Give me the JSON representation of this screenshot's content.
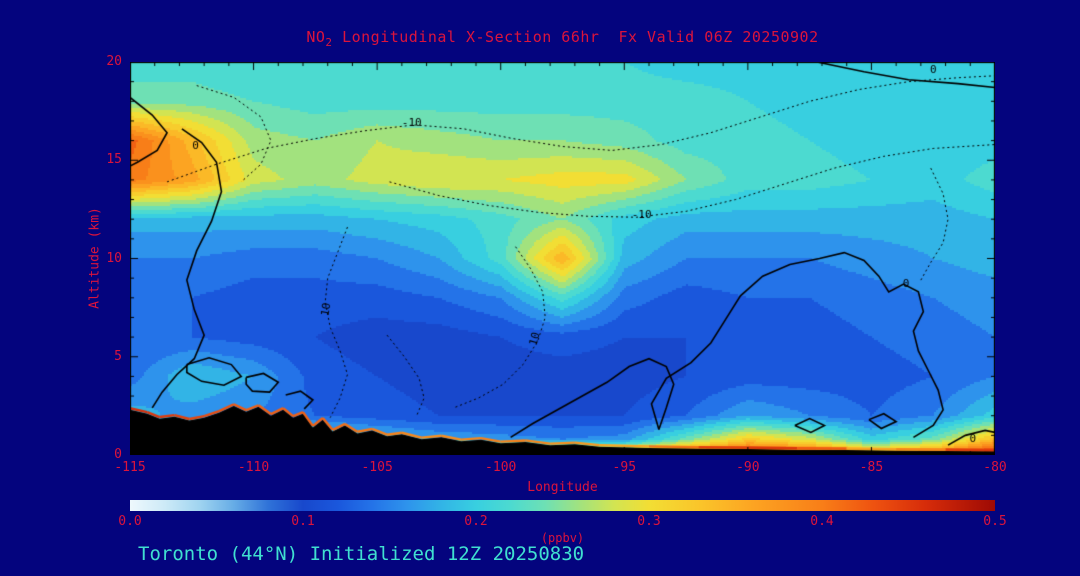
{
  "colors": {
    "background": "#04047e",
    "title_text": "#DC143C",
    "axis_text": "#DC143C",
    "footer_text": "#40E0D0",
    "contour_lines": "#000000",
    "terrain": "#000000"
  },
  "title": {
    "prefix": "NO",
    "subscript": "2",
    "rest": " Longitudinal X-Section 66hr  Fx Valid 06Z 20250902"
  },
  "footer": {
    "text": "Toronto (44°N) Initialized 12Z 20250830"
  },
  "chart_data": {
    "type": "heatmap",
    "title": "NO2 Longitudinal X-Section 66hr  Fx Valid 06Z 20250902",
    "x_axis": {
      "label": "Longitude",
      "min": -115,
      "max": -80,
      "major_ticks": [
        -115,
        -110,
        -105,
        -100,
        -95,
        -90,
        -85,
        -80
      ],
      "tick_labels": [
        "-115",
        "-110",
        "-105",
        "-100",
        "-95",
        "-90",
        "-85",
        "-80"
      ],
      "minor_tick_step": 1
    },
    "y_axis": {
      "label": "Altitude (km)",
      "min": 0,
      "max": 20,
      "major_ticks": [
        0,
        5,
        10,
        15,
        20
      ],
      "tick_labels": [
        "0",
        "5",
        "10",
        "15",
        "20"
      ],
      "minor_tick_step": 1
    },
    "colorbar": {
      "label": "(ppbv)",
      "min": 0.0,
      "max": 0.5,
      "tick_values": [
        0.0,
        0.1,
        0.2,
        0.3,
        0.4,
        0.5
      ],
      "tick_labels": [
        "0.0",
        "0.1",
        "0.2",
        "0.3",
        "0.4",
        "0.5"
      ],
      "stops": [
        [
          0.0,
          "#eef8fd"
        ],
        [
          0.02,
          "#cdeaf7"
        ],
        [
          0.04,
          "#a0d4f0"
        ],
        [
          0.06,
          "#66ace6"
        ],
        [
          0.08,
          "#2f72d8"
        ],
        [
          0.1,
          "#1848cc"
        ],
        [
          0.12,
          "#1a57dc"
        ],
        [
          0.14,
          "#2473e8"
        ],
        [
          0.16,
          "#2e93ec"
        ],
        [
          0.18,
          "#32b4e6"
        ],
        [
          0.2,
          "#38cfe0"
        ],
        [
          0.22,
          "#4cdad0"
        ],
        [
          0.24,
          "#6ee0b4"
        ],
        [
          0.26,
          "#a2e27e"
        ],
        [
          0.28,
          "#d2e452"
        ],
        [
          0.3,
          "#f2de34"
        ],
        [
          0.33,
          "#fac42a"
        ],
        [
          0.36,
          "#fca422"
        ],
        [
          0.4,
          "#f87e18"
        ],
        [
          0.43,
          "#ee5210"
        ],
        [
          0.46,
          "#d62c0a"
        ],
        [
          0.5,
          "#9e0a04"
        ]
      ]
    },
    "grid": {
      "lon": [
        -115,
        -112.5,
        -110,
        -107.5,
        -105,
        -102.5,
        -100,
        -97.5,
        -95,
        -92.5,
        -90,
        -87.5,
        -85,
        -82.5,
        -80
      ],
      "km": [
        0,
        0.8,
        2,
        4,
        6,
        8,
        10,
        12,
        14,
        16,
        18,
        20
      ],
      "values_ppbv": [
        [
          0.46,
          0.44,
          0.42,
          0.42,
          0.4,
          0.38,
          0.4,
          0.38,
          0.36,
          0.42,
          0.46,
          0.44,
          0.36,
          0.4,
          0.48
        ],
        [
          0.3,
          0.26,
          0.24,
          0.22,
          0.19,
          0.17,
          0.16,
          0.15,
          0.16,
          0.24,
          0.32,
          0.28,
          0.2,
          0.24,
          0.34
        ],
        [
          0.18,
          0.16,
          0.15,
          0.13,
          0.12,
          0.11,
          0.11,
          0.11,
          0.11,
          0.13,
          0.17,
          0.15,
          0.13,
          0.15,
          0.2
        ],
        [
          0.14,
          0.19,
          0.17,
          0.12,
          0.11,
          0.1,
          0.1,
          0.1,
          0.1,
          0.11,
          0.12,
          0.12,
          0.12,
          0.13,
          0.15
        ],
        [
          0.13,
          0.13,
          0.12,
          0.11,
          0.1,
          0.1,
          0.11,
          0.12,
          0.11,
          0.11,
          0.12,
          0.12,
          0.13,
          0.14,
          0.15
        ],
        [
          0.13,
          0.13,
          0.12,
          0.12,
          0.12,
          0.13,
          0.15,
          0.22,
          0.14,
          0.12,
          0.13,
          0.13,
          0.14,
          0.15,
          0.16
        ],
        [
          0.15,
          0.15,
          0.14,
          0.14,
          0.15,
          0.17,
          0.22,
          0.35,
          0.18,
          0.15,
          0.15,
          0.15,
          0.16,
          0.17,
          0.18
        ],
        [
          0.18,
          0.18,
          0.18,
          0.18,
          0.19,
          0.2,
          0.22,
          0.25,
          0.2,
          0.18,
          0.18,
          0.18,
          0.18,
          0.18,
          0.19
        ],
        [
          0.4,
          0.36,
          0.28,
          0.26,
          0.28,
          0.29,
          0.29,
          0.3,
          0.3,
          0.25,
          0.22,
          0.22,
          0.21,
          0.2,
          0.22
        ],
        [
          0.42,
          0.34,
          0.26,
          0.25,
          0.27,
          0.26,
          0.25,
          0.25,
          0.24,
          0.22,
          0.22,
          0.21,
          0.2,
          0.2,
          0.2
        ],
        [
          0.24,
          0.24,
          0.23,
          0.22,
          0.22,
          0.22,
          0.22,
          0.22,
          0.22,
          0.22,
          0.21,
          0.2,
          0.2,
          0.2,
          0.2
        ],
        [
          0.22,
          0.22,
          0.21,
          0.21,
          0.21,
          0.21,
          0.21,
          0.21,
          0.21,
          0.2,
          0.2,
          0.2,
          0.19,
          0.19,
          0.19
        ]
      ]
    },
    "terrain_km": [
      [
        -115,
        2.3
      ],
      [
        -114.3,
        2.1
      ],
      [
        -113.8,
        1.85
      ],
      [
        -113.2,
        1.95
      ],
      [
        -112.6,
        1.75
      ],
      [
        -112,
        1.9
      ],
      [
        -111.4,
        2.15
      ],
      [
        -110.8,
        2.5
      ],
      [
        -110.3,
        2.2
      ],
      [
        -109.8,
        2.45
      ],
      [
        -109.3,
        2.0
      ],
      [
        -108.8,
        2.3
      ],
      [
        -108.4,
        1.9
      ],
      [
        -108,
        2.1
      ],
      [
        -107.6,
        1.4
      ],
      [
        -107.2,
        1.8
      ],
      [
        -106.8,
        1.2
      ],
      [
        -106.3,
        1.5
      ],
      [
        -105.8,
        1.1
      ],
      [
        -105.2,
        1.25
      ],
      [
        -104.6,
        0.95
      ],
      [
        -104,
        1.05
      ],
      [
        -103.2,
        0.8
      ],
      [
        -102.4,
        0.9
      ],
      [
        -101.6,
        0.7
      ],
      [
        -100.8,
        0.78
      ],
      [
        -100,
        0.6
      ],
      [
        -99,
        0.66
      ],
      [
        -98,
        0.5
      ],
      [
        -97,
        0.55
      ],
      [
        -96,
        0.42
      ],
      [
        -94,
        0.36
      ],
      [
        -92,
        0.32
      ],
      [
        -90,
        0.3
      ],
      [
        -88,
        0.26
      ],
      [
        -86,
        0.25
      ],
      [
        -84,
        0.22
      ],
      [
        -82,
        0.2
      ],
      [
        -80,
        0.18
      ]
    ],
    "contours": [
      {
        "dash": false,
        "pts": [
          [
            -87.2,
            20
          ],
          [
            -85.3,
            19.5
          ],
          [
            -83.5,
            19.1
          ],
          [
            -81.5,
            18.9
          ],
          [
            -80,
            18.7
          ]
        ]
      },
      {
        "dash": false,
        "pts": [
          [
            -115,
            18.2
          ],
          [
            -114.1,
            17.3
          ],
          [
            -113.5,
            16.4
          ],
          [
            -113.9,
            15.5
          ],
          [
            -114.7,
            14.9
          ],
          [
            -115,
            14.7
          ]
        ]
      },
      {
        "dash": false,
        "pts": [
          [
            -112.9,
            16.6
          ],
          [
            -112.1,
            15.9
          ],
          [
            -111.5,
            14.9
          ],
          [
            -111.3,
            13.4
          ],
          [
            -111.7,
            11.9
          ],
          [
            -112.3,
            10.4
          ],
          [
            -112.7,
            8.9
          ],
          [
            -112.4,
            7.4
          ],
          [
            -112,
            6.1
          ],
          [
            -112.4,
            4.9
          ],
          [
            -113.1,
            4.1
          ],
          [
            -113.7,
            3.2
          ],
          [
            -114.1,
            2.4
          ]
        ]
      },
      {
        "dash": false,
        "pts": [
          [
            -112.7,
            4.6
          ],
          [
            -111.8,
            4.95
          ],
          [
            -110.9,
            4.6
          ],
          [
            -110.5,
            4.0
          ],
          [
            -111.2,
            3.55
          ],
          [
            -112.1,
            3.75
          ],
          [
            -112.7,
            4.2
          ],
          [
            -112.7,
            4.6
          ]
        ]
      },
      {
        "dash": false,
        "pts": [
          [
            -110.3,
            3.95
          ],
          [
            -109.6,
            4.15
          ],
          [
            -109.0,
            3.7
          ],
          [
            -109.35,
            3.2
          ],
          [
            -110.05,
            3.25
          ],
          [
            -110.3,
            3.6
          ],
          [
            -110.3,
            3.95
          ]
        ]
      },
      {
        "dash": false,
        "pts": [
          [
            -108.7,
            3.05
          ],
          [
            -108.1,
            3.25
          ],
          [
            -107.6,
            2.8
          ],
          [
            -107.95,
            2.35
          ]
        ]
      },
      {
        "dash": false,
        "pts": [
          [
            -99.6,
            0.9
          ],
          [
            -98.7,
            1.6
          ],
          [
            -97.7,
            2.3
          ],
          [
            -96.7,
            3.0
          ],
          [
            -95.7,
            3.7
          ],
          [
            -94.8,
            4.5
          ],
          [
            -94.0,
            4.9
          ],
          [
            -93.3,
            4.5
          ],
          [
            -93.0,
            3.6
          ],
          [
            -93.3,
            2.4
          ],
          [
            -93.6,
            1.3
          ]
        ]
      },
      {
        "dash": false,
        "pts": [
          [
            -93.6,
            1.3
          ],
          [
            -93.9,
            2.6
          ],
          [
            -93.3,
            3.9
          ],
          [
            -92.3,
            4.7
          ],
          [
            -91.5,
            5.7
          ],
          [
            -90.9,
            6.9
          ],
          [
            -90.3,
            8.1
          ],
          [
            -89.4,
            9.1
          ],
          [
            -88.3,
            9.7
          ],
          [
            -87.1,
            10.0
          ],
          [
            -86.1,
            10.3
          ],
          [
            -85.3,
            9.9
          ],
          [
            -84.7,
            9.1
          ],
          [
            -84.3,
            8.3
          ],
          [
            -83.7,
            8.7
          ],
          [
            -83.1,
            8.3
          ],
          [
            -82.9,
            7.3
          ],
          [
            -83.3,
            6.3
          ],
          [
            -83.1,
            5.3
          ],
          [
            -82.7,
            4.3
          ],
          [
            -82.3,
            3.3
          ],
          [
            -82.1,
            2.3
          ],
          [
            -82.5,
            1.5
          ],
          [
            -83.3,
            0.9
          ]
        ]
      },
      {
        "dash": false,
        "pts": [
          [
            -88.1,
            1.5
          ],
          [
            -87.5,
            1.85
          ],
          [
            -86.9,
            1.5
          ],
          [
            -87.45,
            1.15
          ],
          [
            -88.1,
            1.5
          ]
        ]
      },
      {
        "dash": false,
        "pts": [
          [
            -85.1,
            1.8
          ],
          [
            -84.5,
            2.1
          ],
          [
            -84.0,
            1.7
          ],
          [
            -84.6,
            1.35
          ],
          [
            -85.1,
            1.8
          ]
        ]
      },
      {
        "dash": false,
        "pts": [
          [
            -81.9,
            0.5
          ],
          [
            -81.2,
            1.0
          ],
          [
            -80.4,
            1.25
          ],
          [
            -80,
            1.15
          ]
        ]
      },
      {
        "dash": true,
        "pts": [
          [
            -113.5,
            13.9
          ],
          [
            -111.5,
            14.8
          ],
          [
            -109.5,
            15.6
          ],
          [
            -107.5,
            16.1
          ],
          [
            -105.5,
            16.5
          ],
          [
            -103.5,
            16.8
          ],
          [
            -101.5,
            16.6
          ],
          [
            -99.5,
            16.1
          ],
          [
            -97.5,
            15.7
          ],
          [
            -95.5,
            15.5
          ],
          [
            -93.5,
            15.8
          ],
          [
            -91.5,
            16.4
          ],
          [
            -89.5,
            17.2
          ],
          [
            -87.5,
            18.0
          ],
          [
            -85.5,
            18.6
          ],
          [
            -83.5,
            19.0
          ],
          [
            -81.5,
            19.2
          ],
          [
            -80,
            19.3
          ]
        ]
      },
      {
        "dash": true,
        "pts": [
          [
            -104.5,
            13.9
          ],
          [
            -102.5,
            13.2
          ],
          [
            -100.5,
            12.7
          ],
          [
            -98.5,
            12.35
          ],
          [
            -96.5,
            12.15
          ],
          [
            -94.5,
            12.1
          ],
          [
            -92.5,
            12.4
          ],
          [
            -90.5,
            13.0
          ],
          [
            -88.5,
            13.8
          ],
          [
            -86.5,
            14.6
          ],
          [
            -84.5,
            15.2
          ],
          [
            -82.5,
            15.6
          ],
          [
            -80,
            15.8
          ]
        ]
      },
      {
        "dash": true,
        "pts": [
          [
            -106.2,
            11.6
          ],
          [
            -106.6,
            10.3
          ],
          [
            -107.0,
            9.0
          ],
          [
            -107.1,
            7.8
          ],
          [
            -106.9,
            6.5
          ],
          [
            -106.5,
            5.3
          ],
          [
            -106.2,
            4.1
          ],
          [
            -106.5,
            2.9
          ],
          [
            -106.9,
            1.9
          ]
        ]
      },
      {
        "dash": true,
        "pts": [
          [
            -99.4,
            10.6
          ],
          [
            -98.8,
            9.5
          ],
          [
            -98.3,
            8.3
          ],
          [
            -98.2,
            7.0
          ],
          [
            -98.5,
            5.8
          ],
          [
            -99.1,
            4.6
          ],
          [
            -99.9,
            3.6
          ],
          [
            -100.9,
            2.9
          ],
          [
            -101.9,
            2.4
          ]
        ]
      },
      {
        "dash": true,
        "pts": [
          [
            -112.3,
            18.8
          ],
          [
            -110.8,
            18.2
          ],
          [
            -109.7,
            17.2
          ],
          [
            -109.3,
            16.0
          ],
          [
            -109.7,
            14.8
          ],
          [
            -110.5,
            13.9
          ]
        ]
      },
      {
        "dash": true,
        "pts": [
          [
            -82.6,
            14.6
          ],
          [
            -82.1,
            13.3
          ],
          [
            -81.9,
            12.0
          ],
          [
            -82.1,
            10.8
          ],
          [
            -82.6,
            9.8
          ],
          [
            -83.0,
            8.9
          ]
        ]
      },
      {
        "dash": true,
        "pts": [
          [
            -104.6,
            6.1
          ],
          [
            -103.9,
            5.0
          ],
          [
            -103.3,
            3.9
          ],
          [
            -103.1,
            2.9
          ],
          [
            -103.4,
            2.0
          ]
        ]
      }
    ],
    "contour_labels": [
      {
        "text": "0",
        "lon": -112.35,
        "km": 15.7,
        "rot": 0
      },
      {
        "text": "-10",
        "lon": -103.6,
        "km": 16.9,
        "rot": 0
      },
      {
        "text": "0",
        "lon": -82.5,
        "km": 19.6,
        "rot": 0
      },
      {
        "text": "-10",
        "lon": -94.3,
        "km": 12.2,
        "rot": 0
      },
      {
        "text": "10",
        "lon": -107.05,
        "km": 7.4,
        "rot": -80
      },
      {
        "text": "10",
        "lon": -98.6,
        "km": 5.9,
        "rot": -75
      },
      {
        "text": "0",
        "lon": -83.6,
        "km": 8.7,
        "rot": 0
      },
      {
        "text": "0",
        "lon": -80.9,
        "km": 0.8,
        "rot": 0
      }
    ]
  }
}
